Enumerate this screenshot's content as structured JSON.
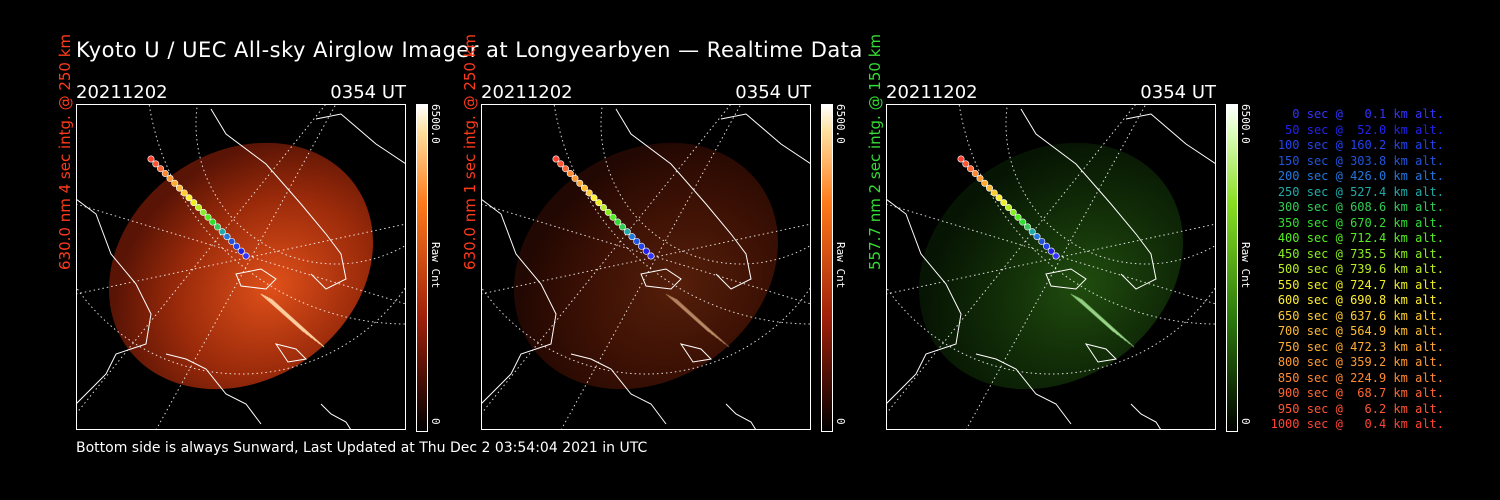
{
  "title": "Kyoto U / UEC All-sky Airglow Imager at Longyearbyen — Realtime Data",
  "footer": "Bottom side is always Sunward, Last Updated at Thu Dec  2 03:54:04 2021 in UTC",
  "panels": [
    {
      "date": "20211202",
      "time": "0354 UT",
      "side_label": "630.0 nm 4 sec intg. @ 250 km",
      "label_color": "#ff3a1a",
      "colorbar_max": "6500.0",
      "colorbar_min": "0",
      "colorbar_unit": "Raw Cnt",
      "emission_color": "red"
    },
    {
      "date": "20211202",
      "time": "0354 UT",
      "side_label": "630.0 nm 1 sec intg. @ 250 km",
      "label_color": "#ff3a1a",
      "colorbar_max": "6500.0",
      "colorbar_min": "0",
      "colorbar_unit": "Raw Cnt",
      "emission_color": "red"
    },
    {
      "date": "20211202",
      "time": "0354 UT",
      "side_label": "557.7 nm 2 sec intg. @ 150 km",
      "label_color": "#33dd33",
      "colorbar_max": "6500.0",
      "colorbar_min": "0",
      "colorbar_unit": "Raw Cnt",
      "emission_color": "green"
    }
  ],
  "legend": [
    {
      "text": "0 sec @   0.1 km alt.",
      "color": "#3333ff"
    },
    {
      "text": "50 sec @  52.0 km alt.",
      "color": "#2222ee"
    },
    {
      "text": "100 sec @ 160.2 km alt.",
      "color": "#2244ee"
    },
    {
      "text": "150 sec @ 303.8 km alt.",
      "color": "#2255dd"
    },
    {
      "text": "200 sec @ 426.0 km alt.",
      "color": "#2277dd"
    },
    {
      "text": "250 sec @ 527.4 km alt.",
      "color": "#22aaaa"
    },
    {
      "text": "300 sec @ 608.6 km alt.",
      "color": "#33cc55"
    },
    {
      "text": "350 sec @ 670.2 km alt.",
      "color": "#33dd33"
    },
    {
      "text": "400 sec @ 712.4 km alt.",
      "color": "#55ee22"
    },
    {
      "text": "450 sec @ 735.5 km alt.",
      "color": "#88ee22"
    },
    {
      "text": "500 sec @ 739.6 km alt.",
      "color": "#bbee22"
    },
    {
      "text": "550 sec @ 724.7 km alt.",
      "color": "#eeee22"
    },
    {
      "text": "600 sec @ 690.8 km alt.",
      "color": "#ffee33"
    },
    {
      "text": "650 sec @ 637.6 km alt.",
      "color": "#ffcc33"
    },
    {
      "text": "700 sec @ 564.9 km alt.",
      "color": "#ffbb33"
    },
    {
      "text": "750 sec @ 472.3 km alt.",
      "color": "#ffaa33"
    },
    {
      "text": "800 sec @ 359.2 km alt.",
      "color": "#ff9933"
    },
    {
      "text": "850 sec @ 224.9 km alt.",
      "color": "#ff8833"
    },
    {
      "text": "900 sec @  68.7 km alt.",
      "color": "#ff6633"
    },
    {
      "text": "950 sec @   6.2 km alt.",
      "color": "#ff5533"
    },
    {
      "text": "1000 sec @   0.4 km alt.",
      "color": "#ff4433"
    }
  ]
}
